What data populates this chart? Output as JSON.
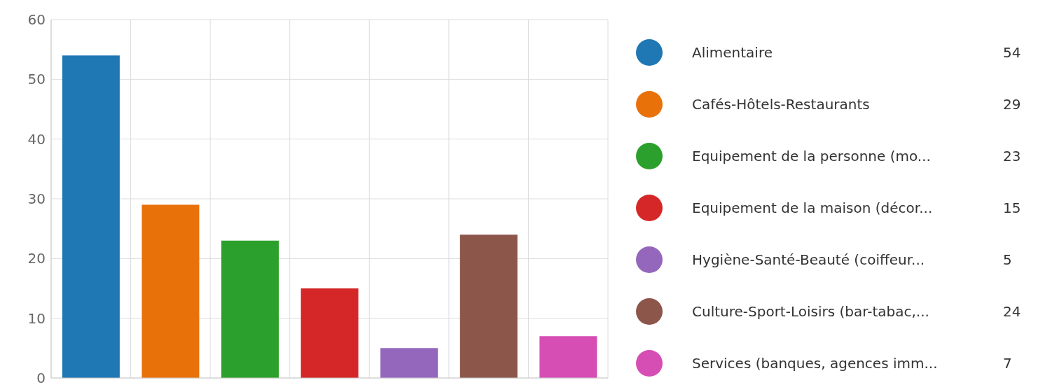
{
  "chart_data": {
    "type": "bar",
    "categories": [
      null,
      null,
      null,
      null,
      null,
      null,
      null
    ],
    "stacked": true,
    "series": [
      {
        "name": "Alimentaire",
        "color": "#1f77b4",
        "values": [
          54,
          null,
          null,
          null,
          null,
          null,
          null
        ]
      },
      {
        "name": "Cafés-Hôtels-Restaurants",
        "color": "#e8710a",
        "values": [
          null,
          29,
          null,
          null,
          null,
          null,
          null
        ]
      },
      {
        "name": "Equipement de la personne (mo...",
        "color": "#2ca02c",
        "values": [
          null,
          null,
          23,
          null,
          null,
          null,
          null
        ]
      },
      {
        "name": "Equipement de la maison (décor...",
        "color": "#d62728",
        "values": [
          null,
          null,
          null,
          15,
          null,
          null,
          null
        ]
      },
      {
        "name": "Hygiène-Santé-Beauté (coiffeur...",
        "color": "#9467bd",
        "values": [
          null,
          null,
          null,
          null,
          5,
          null,
          null
        ]
      },
      {
        "name": "Culture-Sport-Loisirs (bar-tabac,...",
        "color": "#8c564b",
        "values": [
          null,
          null,
          null,
          null,
          null,
          24,
          null
        ]
      },
      {
        "name": "Services (banques, agences imm...",
        "color": "#d64db4",
        "values": [
          null,
          null,
          null,
          null,
          null,
          null,
          7
        ]
      }
    ],
    "annotations": [
      "54",
      "29",
      "23",
      "15",
      "5",
      "24",
      "7"
    ],
    "ylim": [
      0,
      60
    ],
    "yticks": [
      0,
      10,
      20,
      30,
      40,
      50,
      60
    ],
    "grid": true,
    "legend": "right",
    "tick_labels": "y"
  }
}
